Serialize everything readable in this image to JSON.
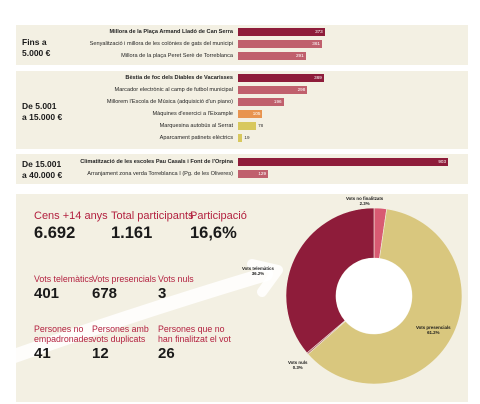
{
  "colors": {
    "bar_dark": "#8e1c3a",
    "bar_medium": "#c0606d",
    "bar_orange": "#e8944f",
    "bar_yellow": "#d8c85e",
    "donut_telematics": "#8e1c3a",
    "donut_presencials": "#d9c77e",
    "donut_nuls": "#b5656f",
    "donut_no_finalitzats": "#d85a72",
    "accent_red": "#b21f3e",
    "panel_bg": "#f3f0e3"
  },
  "chart_data": [
    {
      "type": "bar",
      "orientation": "horizontal",
      "groups": [
        {
          "label": "Fins a\n5.000 €",
          "items": [
            {
              "name": "Millora de la Plaça Armand Lladó de Can Serra",
              "value": 373,
              "bold": true,
              "color": "#8e1c3a"
            },
            {
              "name": "Senyalització i millora de les colònies de gats del municipi",
              "value": 361,
              "bold": false,
              "color": "#c0606d"
            },
            {
              "name": "Millora de la plaça Peret Serè de Torreblanca",
              "value": 291,
              "bold": false,
              "color": "#c0606d"
            }
          ]
        },
        {
          "label": "De 5.001\na 15.000 €",
          "items": [
            {
              "name": "Bèstia de foc dels Diables de Vacarisses",
              "value": 369,
              "bold": true,
              "color": "#8e1c3a"
            },
            {
              "name": "Marcador electrònic al camp de futbol municipal",
              "value": 298,
              "bold": false,
              "color": "#c0606d"
            },
            {
              "name": "Millorem l'Escola de Música (adquisició d'un piano)",
              "value": 196,
              "bold": false,
              "color": "#c0606d"
            },
            {
              "name": "Màquines d'exercici a l'Eixample",
              "value": 105,
              "bold": false,
              "color": "#e8944f"
            },
            {
              "name": "Marquesina autobús al Serrat",
              "value": 78,
              "bold": false,
              "color": "#d8c85e"
            },
            {
              "name": "Aparcament patinets elèctrics",
              "value": 19,
              "bold": false,
              "color": "#d8c85e"
            }
          ]
        },
        {
          "label": "De 15.001\na 40.000 €",
          "items": [
            {
              "name": "Climatització de les escoles Pau Casals i Font de l'Orpina",
              "value": 903,
              "bold": true,
              "color": "#8e1c3a"
            },
            {
              "name": "Arranjament zona verda Torreblanca I (Pg. de les Oliveres)",
              "value": 129,
              "bold": false,
              "color": "#c0606d"
            }
          ]
        }
      ]
    },
    {
      "type": "pie",
      "donut": true,
      "slices": [
        {
          "name": "Vots no finalitzats",
          "value": 2.3,
          "label": "2.3%",
          "color": "#d85a72"
        },
        {
          "name": "Vots presencials",
          "value": 61.2,
          "label": "61.2%",
          "color": "#d9c77e"
        },
        {
          "name": "Vots nuls",
          "value": 0.3,
          "label": "0.3%",
          "color": "#b5656f"
        },
        {
          "name": "Vots telemàtics",
          "value": 36.2,
          "label": "36.2%",
          "color": "#8e1c3a"
        }
      ]
    }
  ],
  "stats": {
    "cens": {
      "label": "Cens +14 anys",
      "value": "6.692"
    },
    "total": {
      "label": "Total participants",
      "value": "1.161"
    },
    "participacio": {
      "label": "Participació",
      "value": "16,6%"
    },
    "telematics": {
      "label": "Vots telemàtics",
      "value": "401"
    },
    "presencials": {
      "label": "Vots presencials",
      "value": "678"
    },
    "nuls": {
      "label": "Vots nuls",
      "value": "3"
    },
    "no_empadronades": {
      "label": "Persones no empadronades",
      "value": "41"
    },
    "duplicats": {
      "label": "Persones amb vots duplicats",
      "value": "12"
    },
    "no_finalitzat": {
      "label": "Persones que no han finalitzat el vot",
      "value": "26"
    }
  }
}
